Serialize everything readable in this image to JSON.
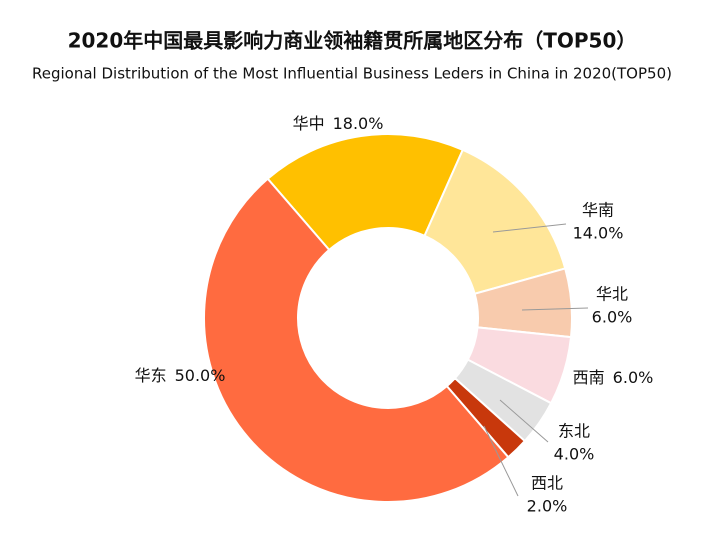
{
  "chart_data": {
    "type": "donut",
    "title": "2020年中国最具影响力商业领袖籍贯所属地区分布（TOP50）",
    "subtitle": "Regional Distribution of the Most Influential Business Leders in China in 2020(TOP50)",
    "categories": [
      "华中",
      "华南",
      "华北",
      "西南",
      "东北",
      "西北",
      "华东"
    ],
    "values": [
      18,
      14,
      6,
      6,
      4,
      2,
      50
    ],
    "value_labels": [
      "18.0%",
      "14.0%",
      "6.0%",
      "6.0%",
      "4.0%",
      "2.0%",
      "50.0%"
    ],
    "colors": [
      "#FFC000",
      "#FFE699",
      "#F8CBAD",
      "#FADBE0",
      "#E2E2E2",
      "#C8380C",
      "#FF6B40"
    ]
  }
}
